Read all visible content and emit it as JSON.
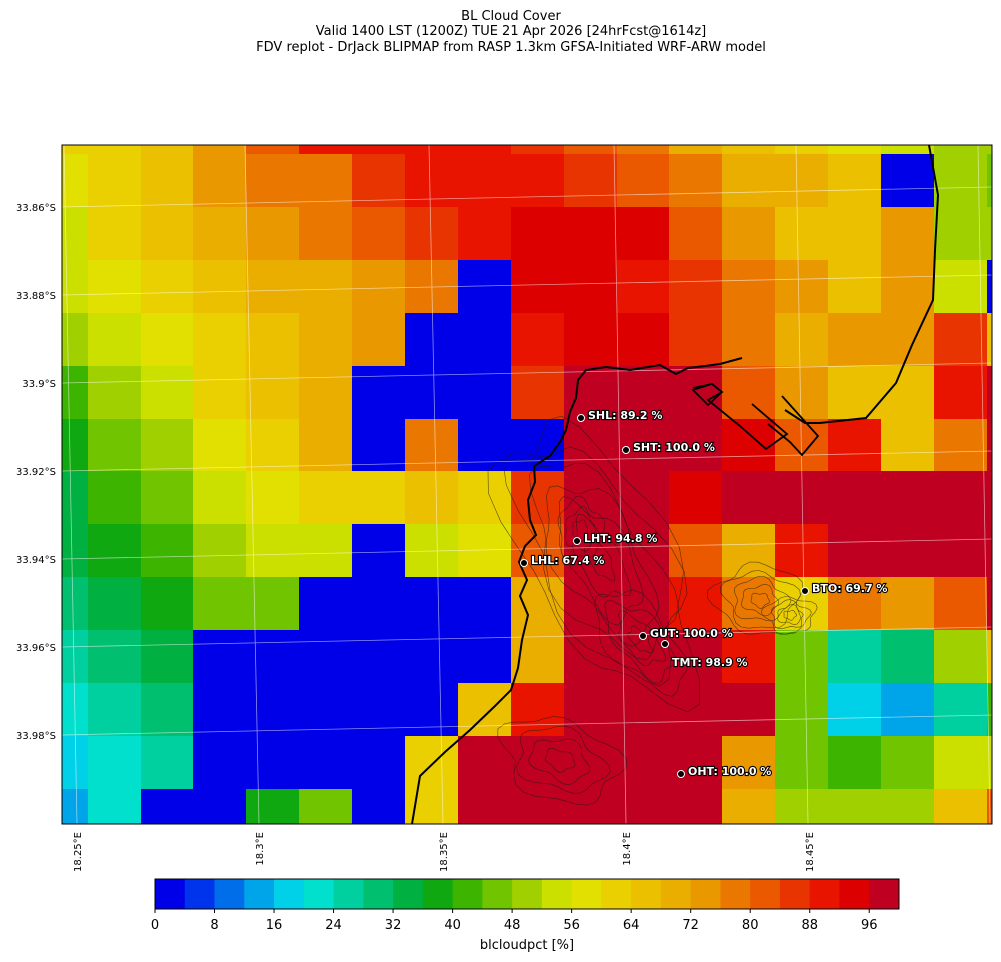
{
  "title": {
    "line1": "BL Cloud Cover",
    "line2": "Valid 1400 LST (1200Z) TUE 21 Apr 2026 [24hrFcst@1614z]",
    "line3": "FDV replot - DrJack BLIPMAP from RASP 1.3km GFSA-Initiated WRF-ARW model"
  },
  "map": {
    "y_ticks": [
      "33.86°S",
      "33.88°S",
      "33.9°S",
      "33.92°S",
      "33.94°S",
      "33.96°S",
      "33.98°S"
    ],
    "x_ticks": [
      "18.25°E",
      "18.3°E",
      "18.35°E",
      "18.4°E",
      "18.45°E"
    ],
    "grid_values_pct": [
      [
        62,
        62,
        66,
        74,
        82,
        90,
        90,
        90,
        90,
        86,
        82,
        78,
        70,
        66,
        62,
        58,
        54,
        50,
        50
      ],
      [
        58,
        62,
        66,
        74,
        78,
        78,
        86,
        90,
        90,
        90,
        86,
        82,
        78,
        70,
        70,
        66,
        2,
        50,
        46
      ],
      [
        54,
        62,
        66,
        70,
        74,
        78,
        82,
        86,
        90,
        94,
        94,
        94,
        82,
        74,
        66,
        66,
        74,
        50,
        50
      ],
      [
        54,
        58,
        62,
        66,
        70,
        70,
        74,
        78,
        2,
        94,
        94,
        90,
        86,
        78,
        74,
        66,
        74,
        54,
        2
      ],
      [
        50,
        54,
        58,
        62,
        66,
        70,
        74,
        2,
        2,
        90,
        94,
        94,
        86,
        78,
        70,
        74,
        74,
        86,
        66
      ],
      [
        42,
        50,
        54,
        62,
        66,
        70,
        2,
        2,
        2,
        86,
        98,
        98,
        98,
        82,
        74,
        66,
        66,
        90,
        98
      ],
      [
        38,
        46,
        50,
        58,
        62,
        70,
        2,
        78,
        2,
        2,
        98,
        98,
        98,
        94,
        82,
        90,
        66,
        78,
        98
      ],
      [
        34,
        42,
        46,
        54,
        58,
        62,
        62,
        66,
        62,
        86,
        98,
        98,
        94,
        98,
        98,
        98,
        98,
        98,
        98
      ],
      [
        34,
        38,
        42,
        50,
        54,
        54,
        2,
        54,
        58,
        82,
        98,
        98,
        82,
        70,
        90,
        98,
        98,
        98,
        98
      ],
      [
        30,
        34,
        38,
        46,
        46,
        2,
        2,
        2,
        2,
        70,
        98,
        98,
        90,
        78,
        62,
        78,
        74,
        82,
        98
      ],
      [
        26,
        30,
        34,
        2,
        2,
        2,
        2,
        2,
        2,
        70,
        98,
        98,
        98,
        90,
        46,
        26,
        30,
        50,
        66
      ],
      [
        22,
        26,
        30,
        2,
        2,
        2,
        2,
        2,
        66,
        90,
        98,
        98,
        98,
        98,
        46,
        18,
        14,
        26,
        42
      ],
      [
        18,
        22,
        26,
        2,
        2,
        2,
        2,
        62,
        98,
        98,
        98,
        98,
        98,
        74,
        46,
        42,
        46,
        54,
        54
      ],
      [
        14,
        22,
        2,
        2,
        38,
        46,
        2,
        62,
        98,
        98,
        98,
        98,
        98,
        70,
        50,
        50,
        50,
        66,
        82
      ]
    ],
    "stations": [
      {
        "label": "SHL: 89.2 %"
      },
      {
        "label": "SHT: 100.0 %"
      },
      {
        "label": "LHT: 94.8 %"
      },
      {
        "label": "LHL: 67.4 %"
      },
      {
        "label": "BTO: 69.7 %"
      },
      {
        "label": "GUT: 100.0 %"
      },
      {
        "label": "TMT: 98.9 %"
      },
      {
        "label": "OHT: 100.0 %"
      }
    ]
  },
  "colorbar": {
    "label": "blcloudpct [%]",
    "min": 0,
    "max": 100,
    "step": 4,
    "tick_labels": [
      "0",
      "8",
      "16",
      "24",
      "32",
      "40",
      "48",
      "56",
      "64",
      "72",
      "80",
      "88",
      "96"
    ],
    "colors": [
      "#0000e8",
      "#0034ec",
      "#006ee8",
      "#00a4e8",
      "#00d0e8",
      "#00e0cc",
      "#00d0a0",
      "#00c070",
      "#00b040",
      "#10a810",
      "#3cb400",
      "#70c400",
      "#a0d000",
      "#cce000",
      "#e2e000",
      "#ead000",
      "#eac000",
      "#eaae00",
      "#ea9800",
      "#ea7800",
      "#ea5800",
      "#e83400",
      "#e81400",
      "#dc0000",
      "#c00020"
    ]
  }
}
